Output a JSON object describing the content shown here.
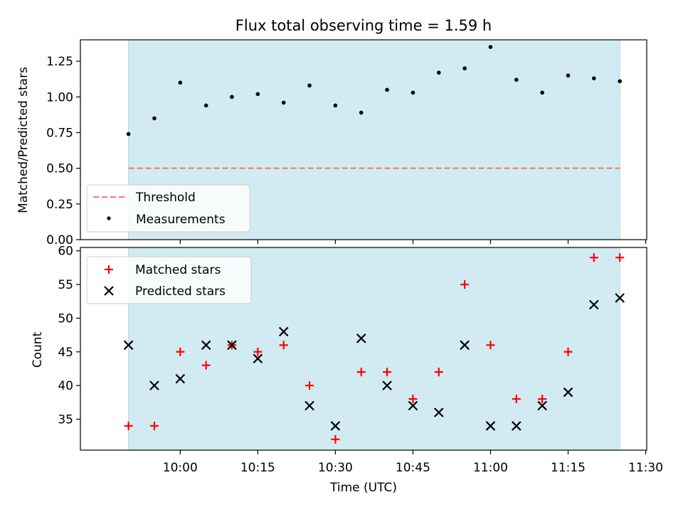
{
  "chart_data": [
    {
      "type": "scatter",
      "title": "Flux total observing time = 1.59 h",
      "ylabel": "Matched/Predicted stars",
      "xlabel": "",
      "ylim": [
        0,
        1.4
      ],
      "yticks": [
        0.0,
        0.25,
        0.5,
        0.75,
        1.0,
        1.25
      ],
      "ytick_labels": [
        "0.00",
        "0.25",
        "0.50",
        "0.75",
        "1.00",
        "1.25"
      ],
      "shaded_color": "#add8e6",
      "legend_position": "lower-left",
      "threshold": {
        "name": "Threshold",
        "value": 0.5,
        "color": "#f08080"
      },
      "series": [
        {
          "name": "Measurements",
          "color": "#000000",
          "x": [
            "09:50",
            "09:55",
            "10:00",
            "10:05",
            "10:10",
            "10:15",
            "10:20",
            "10:25",
            "10:30",
            "10:35",
            "10:40",
            "10:45",
            "10:50",
            "10:55",
            "11:00",
            "11:05",
            "11:10",
            "11:15",
            "11:20",
            "11:25"
          ],
          "values": [
            0.74,
            0.85,
            1.1,
            0.94,
            1.0,
            1.02,
            0.96,
            1.08,
            0.94,
            0.89,
            1.05,
            1.03,
            1.17,
            1.2,
            1.35,
            1.12,
            1.03,
            1.15,
            1.13,
            1.11
          ]
        }
      ]
    },
    {
      "type": "scatter",
      "title": "",
      "ylabel": "Count",
      "xlabel": "Time (UTC)",
      "ylim": [
        30.4,
        60.5
      ],
      "yticks": [
        35,
        40,
        45,
        50,
        55,
        60
      ],
      "ytick_labels": [
        "35",
        "40",
        "45",
        "50",
        "55",
        "60"
      ],
      "xlim": [
        "09:45",
        "11:30"
      ],
      "xticks": [
        "10:00",
        "10:15",
        "10:30",
        "10:45",
        "11:00",
        "11:15",
        "11:30"
      ],
      "xtick_labels": [
        "10:00",
        "10:15",
        "10:30",
        "10:45",
        "11:00",
        "11:15",
        "11:30"
      ],
      "shaded_range": [
        "09:50",
        "11:25"
      ],
      "legend_position": "upper-left",
      "series": [
        {
          "name": "Matched stars",
          "marker": "plus",
          "color": "#ff0000",
          "x": [
            "09:50",
            "09:55",
            "10:00",
            "10:05",
            "10:10",
            "10:15",
            "10:20",
            "10:25",
            "10:30",
            "10:35",
            "10:40",
            "10:45",
            "10:50",
            "10:55",
            "11:00",
            "11:05",
            "11:10",
            "11:15",
            "11:20",
            "11:25"
          ],
          "values": [
            34,
            34,
            45,
            43,
            46,
            45,
            46,
            40,
            32,
            42,
            42,
            38,
            42,
            55,
            46,
            38,
            38,
            45,
            59,
            59
          ]
        },
        {
          "name": "Predicted stars",
          "marker": "x",
          "color": "#000000",
          "x": [
            "09:50",
            "09:55",
            "10:00",
            "10:05",
            "10:10",
            "10:15",
            "10:20",
            "10:25",
            "10:30",
            "10:35",
            "10:40",
            "10:45",
            "10:50",
            "10:55",
            "11:00",
            "11:05",
            "11:10",
            "11:15",
            "11:20",
            "11:25"
          ],
          "values": [
            46,
            40,
            41,
            46,
            46,
            44,
            48,
            37,
            34,
            47,
            40,
            37,
            36,
            46,
            34,
            34,
            37,
            39,
            52,
            53
          ]
        }
      ]
    }
  ]
}
